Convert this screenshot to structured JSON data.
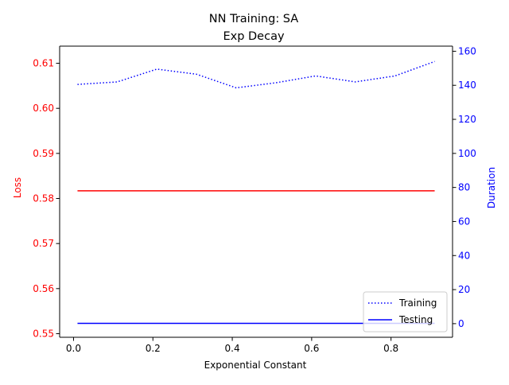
{
  "chart_data": {
    "type": "line",
    "title_line1": "NN Training: SA",
    "title_line2": "Exp Decay",
    "xlabel": "Exponential Constant",
    "ylabel_left": "Loss",
    "ylabel_right": "Duration",
    "xlim": [
      -0.035,
      0.955
    ],
    "ylim_left": [
      0.5492,
      0.6138
    ],
    "ylim_right": [
      -8,
      163
    ],
    "x_ticks": [
      0.0,
      0.2,
      0.4,
      0.6,
      0.8
    ],
    "x_tick_labels": [
      "0.0",
      "0.2",
      "0.4",
      "0.6",
      "0.8"
    ],
    "y_left_ticks": [
      0.55,
      0.56,
      0.57,
      0.58,
      0.59,
      0.6,
      0.61
    ],
    "y_left_tick_labels": [
      "0.55",
      "0.56",
      "0.57",
      "0.58",
      "0.59",
      "0.60",
      "0.61"
    ],
    "y_right_ticks": [
      0,
      20,
      40,
      60,
      80,
      100,
      120,
      140,
      160
    ],
    "y_right_tick_labels": [
      "0",
      "20",
      "40",
      "60",
      "80",
      "100",
      "120",
      "140",
      "160"
    ],
    "x": [
      0.01,
      0.11,
      0.21,
      0.31,
      0.41,
      0.51,
      0.61,
      0.71,
      0.81,
      0.91
    ],
    "loss_series": {
      "axis": "left",
      "color": "#ff0000",
      "values": [
        0.5817,
        0.5817,
        0.5817,
        0.5817,
        0.5817,
        0.5817,
        0.5817,
        0.5817,
        0.5817,
        0.5817
      ]
    },
    "series": [
      {
        "name": "Training",
        "axis": "right",
        "style": "dotted",
        "color": "#0000ff",
        "values": [
          140.5,
          142.0,
          149.5,
          146.5,
          138.5,
          141.5,
          145.5,
          142.0,
          145.5,
          154.0
        ]
      },
      {
        "name": "Testing",
        "axis": "right",
        "style": "solid",
        "color": "#0000ff",
        "values": [
          0.2,
          0.2,
          0.2,
          0.2,
          0.2,
          0.2,
          0.2,
          0.2,
          0.2,
          0.2
        ]
      }
    ],
    "legend_position": "lower-right",
    "grid": false,
    "left_axis_color": "#ff0000",
    "right_axis_color": "#0000ff"
  }
}
